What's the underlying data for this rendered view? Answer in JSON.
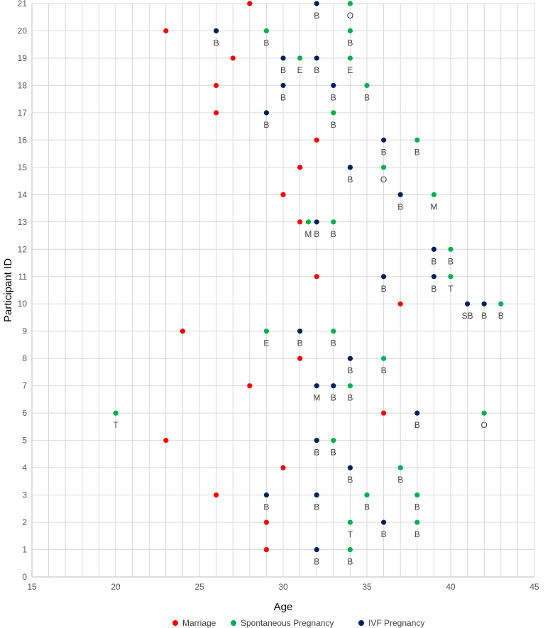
{
  "chart_data": {
    "type": "scatter",
    "title": "",
    "xlabel": "Age",
    "ylabel": "Participant ID",
    "xlim": [
      15,
      45
    ],
    "ylim": [
      0,
      21
    ],
    "x_major_ticks": [
      15,
      20,
      25,
      30,
      35,
      40,
      45
    ],
    "x_minor_step": 1,
    "y_ticks": [
      0,
      1,
      2,
      3,
      4,
      5,
      6,
      7,
      8,
      9,
      10,
      11,
      12,
      13,
      14,
      15,
      16,
      17,
      18,
      19,
      20,
      21
    ],
    "grid": true,
    "legend_position": "bottom",
    "series": [
      {
        "name": "Marriage",
        "color": "#ff0000",
        "points": [
          {
            "participant": 1,
            "age": 29,
            "label": ""
          },
          {
            "participant": 2,
            "age": 29,
            "label": ""
          },
          {
            "participant": 3,
            "age": 26,
            "label": ""
          },
          {
            "participant": 4,
            "age": 30,
            "label": ""
          },
          {
            "participant": 5,
            "age": 23,
            "label": ""
          },
          {
            "participant": 6,
            "age": 36,
            "label": ""
          },
          {
            "participant": 7,
            "age": 28,
            "label": ""
          },
          {
            "participant": 8,
            "age": 31,
            "label": ""
          },
          {
            "participant": 9,
            "age": 24,
            "label": ""
          },
          {
            "participant": 10,
            "age": 37,
            "label": ""
          },
          {
            "participant": 11,
            "age": 32,
            "label": ""
          },
          {
            "participant": 13,
            "age": 31,
            "label": ""
          },
          {
            "participant": 14,
            "age": 30,
            "label": ""
          },
          {
            "participant": 15,
            "age": 31,
            "label": ""
          },
          {
            "participant": 16,
            "age": 32,
            "label": ""
          },
          {
            "participant": 17,
            "age": 26,
            "label": ""
          },
          {
            "participant": 18,
            "age": 26,
            "label": ""
          },
          {
            "participant": 19,
            "age": 27,
            "label": ""
          },
          {
            "participant": 20,
            "age": 23,
            "label": ""
          },
          {
            "participant": 21,
            "age": 28,
            "label": ""
          }
        ]
      },
      {
        "name": "Spontaneous Pregnancy",
        "color": "#00b050",
        "points": [
          {
            "participant": 1,
            "age": 34,
            "label": "B"
          },
          {
            "participant": 2,
            "age": 34,
            "label": "T"
          },
          {
            "participant": 2,
            "age": 38,
            "label": "B"
          },
          {
            "participant": 3,
            "age": 35,
            "label": "B"
          },
          {
            "participant": 3,
            "age": 38,
            "label": "B"
          },
          {
            "participant": 4,
            "age": 37,
            "label": "B"
          },
          {
            "participant": 5,
            "age": 33,
            "label": "B"
          },
          {
            "participant": 6,
            "age": 20,
            "label": "T"
          },
          {
            "participant": 6,
            "age": 42,
            "label": "O"
          },
          {
            "participant": 7,
            "age": 34,
            "label": "B"
          },
          {
            "participant": 8,
            "age": 36,
            "label": "B"
          },
          {
            "participant": 9,
            "age": 29,
            "label": "E"
          },
          {
            "participant": 9,
            "age": 33,
            "label": "B"
          },
          {
            "participant": 10,
            "age": 43,
            "label": "B"
          },
          {
            "participant": 11,
            "age": 40,
            "label": "T"
          },
          {
            "participant": 12,
            "age": 40,
            "label": "B"
          },
          {
            "participant": 13,
            "age": 31.5,
            "label": "M"
          },
          {
            "participant": 13,
            "age": 33,
            "label": "B"
          },
          {
            "participant": 14,
            "age": 39,
            "label": "M"
          },
          {
            "participant": 15,
            "age": 36,
            "label": "O"
          },
          {
            "participant": 16,
            "age": 38,
            "label": "B"
          },
          {
            "participant": 17,
            "age": 33,
            "label": "B"
          },
          {
            "participant": 18,
            "age": 35,
            "label": "B"
          },
          {
            "participant": 19,
            "age": 31,
            "label": "E"
          },
          {
            "participant": 19,
            "age": 34,
            "label": "E"
          },
          {
            "participant": 20,
            "age": 29,
            "label": "B"
          },
          {
            "participant": 20,
            "age": 34,
            "label": "B"
          },
          {
            "participant": 21,
            "age": 34,
            "label": "O"
          }
        ]
      },
      {
        "name": "IVF Pregnancy",
        "color": "#002060",
        "points": [
          {
            "participant": 1,
            "age": 32,
            "label": "B"
          },
          {
            "participant": 2,
            "age": 36,
            "label": "B"
          },
          {
            "participant": 3,
            "age": 29,
            "label": "B"
          },
          {
            "participant": 3,
            "age": 32,
            "label": "B"
          },
          {
            "participant": 4,
            "age": 34,
            "label": "B"
          },
          {
            "participant": 5,
            "age": 32,
            "label": "B"
          },
          {
            "participant": 6,
            "age": 38,
            "label": "B"
          },
          {
            "participant": 7,
            "age": 32,
            "label": "M"
          },
          {
            "participant": 7,
            "age": 33,
            "label": "B"
          },
          {
            "participant": 8,
            "age": 34,
            "label": "B"
          },
          {
            "participant": 9,
            "age": 31,
            "label": "B"
          },
          {
            "participant": 10,
            "age": 41,
            "label": "SB"
          },
          {
            "participant": 10,
            "age": 42,
            "label": "B"
          },
          {
            "participant": 11,
            "age": 36,
            "label": "B"
          },
          {
            "participant": 11,
            "age": 39,
            "label": "B"
          },
          {
            "participant": 12,
            "age": 39,
            "label": "B"
          },
          {
            "participant": 13,
            "age": 32,
            "label": "B"
          },
          {
            "participant": 14,
            "age": 37,
            "label": "B"
          },
          {
            "participant": 15,
            "age": 34,
            "label": "B"
          },
          {
            "participant": 16,
            "age": 36,
            "label": "B"
          },
          {
            "participant": 17,
            "age": 29,
            "label": "B"
          },
          {
            "participant": 18,
            "age": 30,
            "label": "B"
          },
          {
            "participant": 18,
            "age": 33,
            "label": "B"
          },
          {
            "participant": 19,
            "age": 30,
            "label": "B"
          },
          {
            "participant": 19,
            "age": 32,
            "label": "B"
          },
          {
            "participant": 20,
            "age": 26,
            "label": "B"
          },
          {
            "participant": 21,
            "age": 32,
            "label": "B"
          }
        ]
      }
    ]
  }
}
